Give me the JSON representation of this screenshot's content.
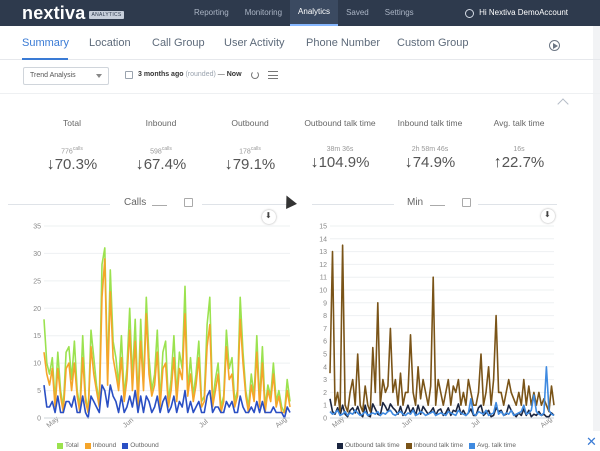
{
  "app": {
    "brand": "nextiva",
    "badge": "ANALYTICS",
    "nav": [
      "Reporting",
      "Monitoring",
      "Analytics",
      "Saved",
      "Settings"
    ],
    "nav_active": 2,
    "account": "Hi Nextiva DemoAccount"
  },
  "tabs": [
    "Summary",
    "Location",
    "Call Group",
    "User Activity",
    "Phone Number",
    "Custom Group"
  ],
  "tab_active": 0,
  "filter": {
    "view": "Trend Analysis",
    "range_start": "3 months ago",
    "range_note": "(rounded)",
    "range_sep": "—",
    "range_end": "Now"
  },
  "stats": [
    {
      "label": "Total",
      "sub": "776",
      "sub_unit": "calls",
      "value": "70.3%",
      "dir": "down"
    },
    {
      "label": "Inbound",
      "sub": "598",
      "sub_unit": "calls",
      "value": "67.4%",
      "dir": "down"
    },
    {
      "label": "Outbound",
      "sub": "178",
      "sub_unit": "calls",
      "value": "79.1%",
      "dir": "down"
    },
    {
      "label": "Outbound talk time",
      "sub": "38m 36s",
      "sub_unit": "",
      "value": "104.9%",
      "dir": "down"
    },
    {
      "label": "Inbound talk time",
      "sub": "2h 58m 46s",
      "sub_unit": "",
      "value": "74.9%",
      "dir": "down"
    },
    {
      "label": "Avg. talk time",
      "sub": "16s",
      "sub_unit": "",
      "value": "22.7%",
      "dir": "up"
    }
  ],
  "colors": {
    "total": "#9be24f",
    "inbound": "#f5a52a",
    "outbound": "#2a4fc4",
    "out_talk": "#1a2540",
    "in_talk": "#7a5418",
    "avg_talk": "#3f8ae0"
  },
  "chart_data": [
    {
      "type": "line",
      "title": "Calls",
      "ylim": [
        0,
        35
      ],
      "yticks": [
        0,
        5,
        10,
        15,
        20,
        25,
        30,
        35
      ],
      "xticks": [
        "May",
        "Jun",
        "Jul",
        "Aug"
      ],
      "x": [
        1,
        2,
        3,
        4,
        5,
        6,
        7,
        8,
        9,
        10,
        11,
        12,
        13,
        14,
        15,
        16,
        17,
        18,
        19,
        20,
        21,
        22,
        23,
        24,
        25,
        26,
        27,
        28,
        29,
        30,
        31,
        32,
        33,
        34,
        35,
        36,
        37,
        38,
        39,
        40,
        41,
        42,
        43,
        44,
        45,
        46,
        47,
        48,
        49,
        50,
        51,
        52,
        53,
        54,
        55,
        56,
        57,
        58,
        59,
        60,
        61,
        62,
        63,
        64,
        65,
        66,
        67,
        68,
        69,
        70,
        71,
        72,
        73,
        74,
        75,
        76,
        77,
        78,
        79,
        80,
        81,
        82,
        83,
        84,
        85,
        86,
        87,
        88,
        89,
        90
      ],
      "series": [
        {
          "name": "Total",
          "values": [
            18,
            10,
            8,
            11,
            3,
            12,
            5,
            2,
            12,
            13,
            7,
            14,
            5,
            2,
            15,
            4,
            1,
            16,
            11,
            6,
            3,
            28,
            31,
            8,
            27,
            14,
            11,
            6,
            15,
            4,
            9,
            20,
            7,
            18,
            3,
            18,
            6,
            22,
            11,
            5,
            8,
            16,
            3,
            12,
            14,
            3,
            7,
            15,
            4,
            12,
            9,
            24,
            5,
            11,
            4,
            8,
            14,
            3,
            4,
            17,
            22,
            3,
            7,
            10,
            2,
            4,
            16,
            9,
            11,
            3,
            5,
            22,
            12,
            5,
            2,
            8,
            4,
            15,
            3,
            13,
            2,
            6,
            4,
            10,
            3,
            5,
            2,
            1,
            7,
            3
          ]
        },
        {
          "name": "Inbound",
          "values": [
            12,
            8,
            6,
            9,
            2,
            9,
            4,
            1,
            9,
            10,
            5,
            10,
            4,
            1,
            11,
            3,
            1,
            13,
            8,
            5,
            2,
            22,
            29,
            6,
            23,
            11,
            8,
            5,
            11,
            3,
            7,
            16,
            5,
            14,
            2,
            14,
            5,
            19,
            8,
            4,
            6,
            12,
            2,
            9,
            10,
            2,
            5,
            11,
            3,
            9,
            7,
            19,
            4,
            8,
            3,
            6,
            11,
            2,
            3,
            13,
            17,
            2,
            5,
            8,
            1,
            3,
            13,
            7,
            8,
            2,
            4,
            18,
            10,
            4,
            1,
            6,
            3,
            12,
            2,
            10,
            1,
            5,
            3,
            8,
            2,
            4,
            1,
            1,
            5,
            2
          ]
        },
        {
          "name": "Outbound",
          "values": [
            6,
            2,
            2,
            3,
            1,
            4,
            1,
            1,
            3,
            3,
            2,
            4,
            1,
            1,
            4,
            1,
            0,
            4,
            3,
            2,
            1,
            6,
            5,
            2,
            6,
            4,
            3,
            1,
            4,
            1,
            2,
            4,
            2,
            5,
            1,
            4,
            1,
            4,
            3,
            1,
            2,
            4,
            1,
            3,
            4,
            1,
            2,
            4,
            1,
            3,
            2,
            5,
            1,
            3,
            1,
            2,
            3,
            1,
            1,
            4,
            5,
            1,
            2,
            2,
            1,
            1,
            3,
            2,
            3,
            1,
            1,
            4,
            2,
            1,
            1,
            2,
            1,
            3,
            1,
            3,
            1,
            1,
            1,
            2,
            1,
            1,
            1,
            0,
            2,
            1
          ]
        }
      ],
      "legend": [
        "Total",
        "Inbound",
        "Outbound"
      ]
    },
    {
      "type": "line",
      "title": "Min",
      "ylim": [
        0,
        15
      ],
      "yticks": [
        0,
        1,
        2,
        3,
        4,
        5,
        6,
        7,
        8,
        9,
        10,
        11,
        12,
        13,
        14,
        15
      ],
      "xticks": [
        "May",
        "Jun",
        "Jul",
        "Aug"
      ],
      "x": [
        1,
        2,
        3,
        4,
        5,
        6,
        7,
        8,
        9,
        10,
        11,
        12,
        13,
        14,
        15,
        16,
        17,
        18,
        19,
        20,
        21,
        22,
        23,
        24,
        25,
        26,
        27,
        28,
        29,
        30,
        31,
        32,
        33,
        34,
        35,
        36,
        37,
        38,
        39,
        40,
        41,
        42,
        43,
        44,
        45,
        46,
        47,
        48,
        49,
        50,
        51,
        52,
        53,
        54,
        55,
        56,
        57,
        58,
        59,
        60,
        61,
        62,
        63,
        64,
        65,
        66,
        67,
        68,
        69,
        70,
        71,
        72,
        73,
        74,
        75,
        76,
        77,
        78,
        79,
        80,
        81,
        82,
        83,
        84,
        85,
        86,
        87,
        88,
        89,
        90
      ],
      "series": [
        {
          "name": "Outbound talk time",
          "values": [
            1.5,
            0.5,
            0.3,
            0.8,
            0.2,
            1.0,
            0.3,
            0.1,
            0.6,
            0.8,
            0.4,
            0.9,
            0.3,
            0.1,
            1.0,
            0.2,
            0.1,
            1.1,
            0.7,
            0.3,
            0.2,
            1.2,
            0.9,
            0.5,
            1.1,
            0.8,
            0.6,
            0.3,
            0.9,
            0.2,
            0.5,
            1.0,
            0.4,
            0.8,
            0.2,
            1.0,
            0.3,
            0.9,
            0.6,
            0.3,
            0.5,
            0.8,
            0.2,
            0.6,
            0.7,
            0.2,
            0.4,
            0.8,
            0.2,
            0.6,
            0.5,
            1.1,
            0.3,
            0.6,
            0.2,
            0.4,
            0.7,
            0.2,
            0.2,
            0.8,
            1.0,
            0.2,
            0.4,
            0.6,
            0.1,
            0.2,
            0.8,
            0.5,
            0.6,
            0.2,
            0.3,
            1.0,
            0.6,
            0.3,
            0.1,
            0.4,
            0.2,
            0.7,
            0.2,
            0.6,
            0.1,
            0.3,
            0.2,
            0.5,
            0.2,
            0.3,
            0.1,
            0.1,
            0.4,
            0.2
          ]
        },
        {
          "name": "Inbound talk time",
          "values": [
            3.5,
            13,
            1,
            2,
            0.5,
            13.5,
            1,
            0.5,
            2,
            3,
            1,
            5,
            1,
            0.5,
            2.5,
            1,
            0.5,
            5.5,
            2,
            9,
            1,
            3,
            2,
            2.5,
            7,
            2,
            3,
            1,
            3.5,
            1,
            2,
            2,
            6.5,
            2,
            1,
            4,
            1.5,
            3,
            2,
            1,
            2.5,
            11,
            1,
            3,
            2,
            1,
            2,
            3,
            1,
            2.5,
            2,
            3,
            1,
            2,
            1,
            3,
            2,
            1,
            1,
            2,
            5,
            1,
            2,
            4,
            1,
            3,
            8,
            2,
            2,
            1,
            2,
            3,
            2,
            1.5,
            1,
            2,
            1,
            3,
            1,
            2.5,
            1,
            2,
            1,
            2,
            1,
            1.5,
            1,
            0.5,
            2.5,
            1
          ]
        },
        {
          "name": "Avg. talk time",
          "values": [
            0.5,
            0.3,
            0.4,
            0.6,
            0.2,
            0.3,
            0.5,
            0.2,
            0.4,
            0.3,
            0.6,
            0.4,
            0.2,
            0.3,
            0.5,
            0.2,
            0.3,
            0.4,
            0.3,
            0.5,
            0.2,
            0.4,
            0.3,
            0.5,
            0.6,
            0.3,
            0.2,
            0.4,
            0.5,
            0.3,
            0.2,
            0.4,
            0.3,
            0.6,
            0.2,
            0.3,
            0.5,
            0.4,
            0.2,
            0.3,
            0.4,
            0.5,
            0.2,
            0.3,
            0.4,
            0.3,
            0.2,
            0.5,
            0.4,
            0.3,
            0.2,
            0.6,
            0.4,
            0.3,
            0.2,
            0.4,
            1.5,
            0.3,
            0.2,
            0.5,
            0.4,
            0.3,
            0.6,
            0.2,
            0.3,
            0.4,
            1.2,
            0.3,
            0.5,
            0.2,
            0.4,
            0.3,
            0.6,
            0.2,
            0.3,
            0.4,
            0.5,
            1.0,
            0.3,
            0.4,
            0.6,
            1.8,
            0.5,
            0.3,
            0.2,
            0.4,
            4.0,
            0.6,
            0.3,
            0.2
          ]
        }
      ],
      "legend": [
        "Outbound talk time",
        "Inbound talk time",
        "Avg. talk time"
      ]
    }
  ]
}
